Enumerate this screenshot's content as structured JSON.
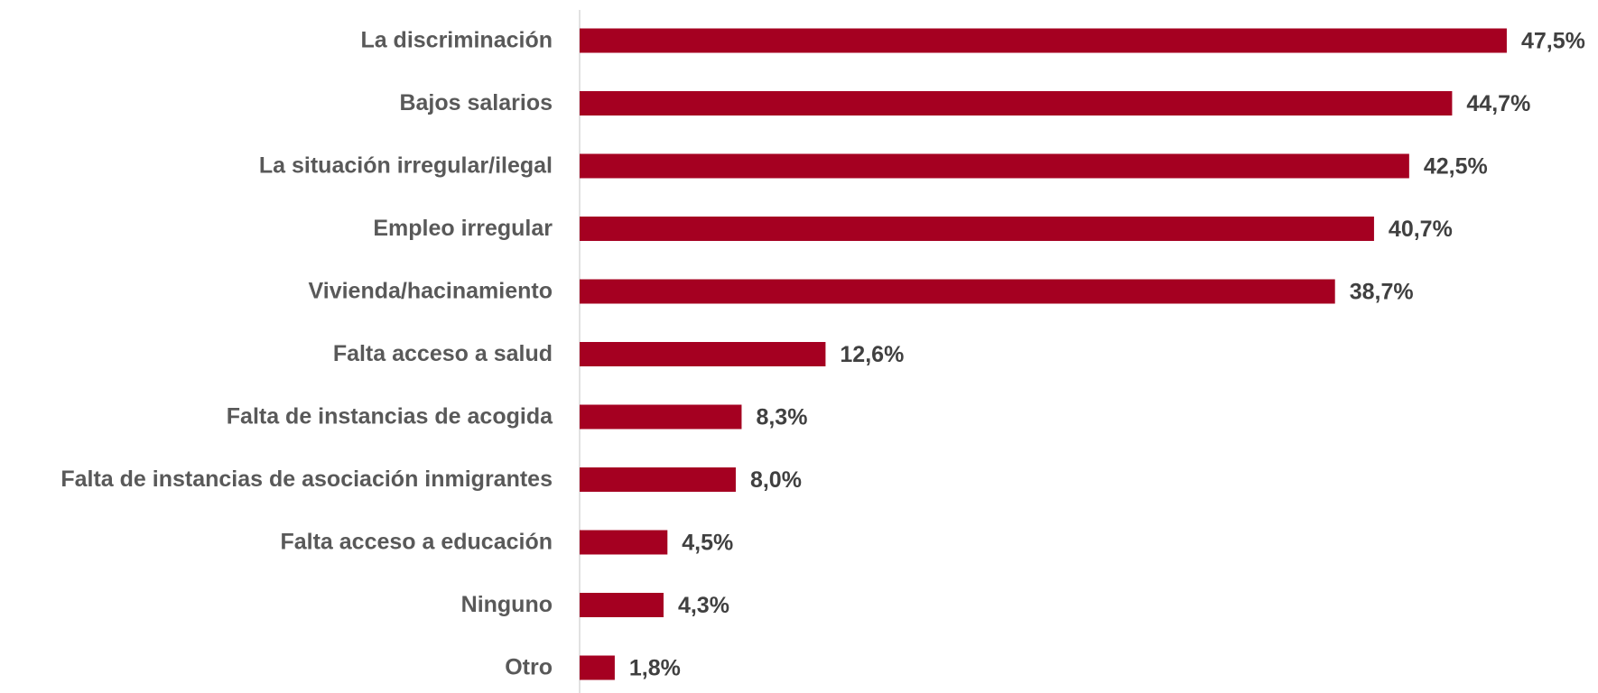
{
  "chart_data": {
    "type": "bar",
    "orientation": "horizontal",
    "categories": [
      "La discriminación",
      "Bajos salarios",
      "La situación irregular/ilegal",
      "Empleo irregular",
      "Vivienda/hacinamiento",
      "Falta acceso a salud",
      "Falta de instancias de acogida",
      "Falta de instancias de asociación inmigrantes",
      "Falta acceso a educación",
      "Ninguno",
      "Otro"
    ],
    "values": [
      47.5,
      44.7,
      42.5,
      40.7,
      38.7,
      12.6,
      8.3,
      8.0,
      4.5,
      4.3,
      1.8
    ],
    "value_labels": [
      "47,5%",
      "44,7%",
      "42,5%",
      "40,7%",
      "38,7%",
      "12,6%",
      "8,3%",
      "8,0%",
      "4,5%",
      "4,3%",
      "1,8%"
    ],
    "color": "#a50021",
    "xlim": [
      0,
      50
    ]
  }
}
